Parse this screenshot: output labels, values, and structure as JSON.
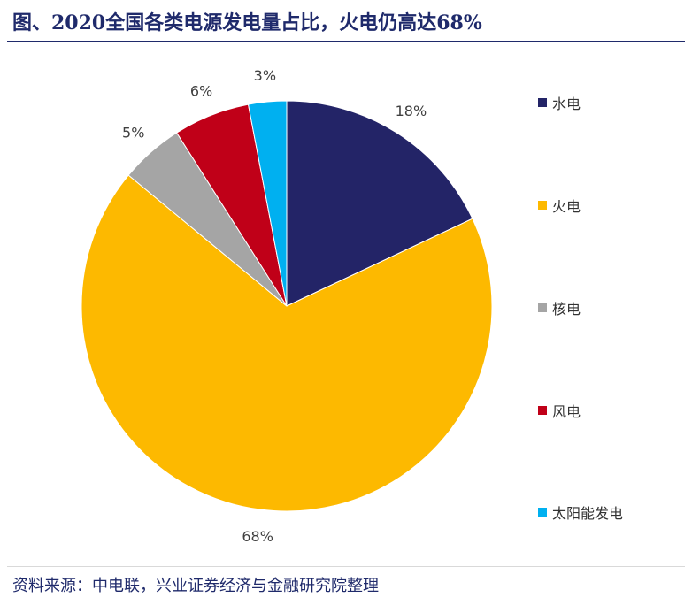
{
  "title": "图、2020全国各类电源发电量占比，火电仍高达68%",
  "source": "资料来源：中电联，兴业证券经济与金融研究院整理",
  "chart_data": {
    "type": "pie",
    "start_angle_deg": 0,
    "direction": "clockwise",
    "slices": [
      {
        "name": "水电",
        "value": 18,
        "label": "18%",
        "color": "#232467"
      },
      {
        "name": "火电",
        "value": 68,
        "label": "68%",
        "color": "#fdb900"
      },
      {
        "name": "核电",
        "value": 5,
        "label": "5%",
        "color": "#a5a5a5"
      },
      {
        "name": "风电",
        "value": 6,
        "label": "6%",
        "color": "#c00018"
      },
      {
        "name": "太阳能发电",
        "value": 3,
        "label": "3%",
        "color": "#00b0f0"
      }
    ],
    "legend_position": "right"
  }
}
